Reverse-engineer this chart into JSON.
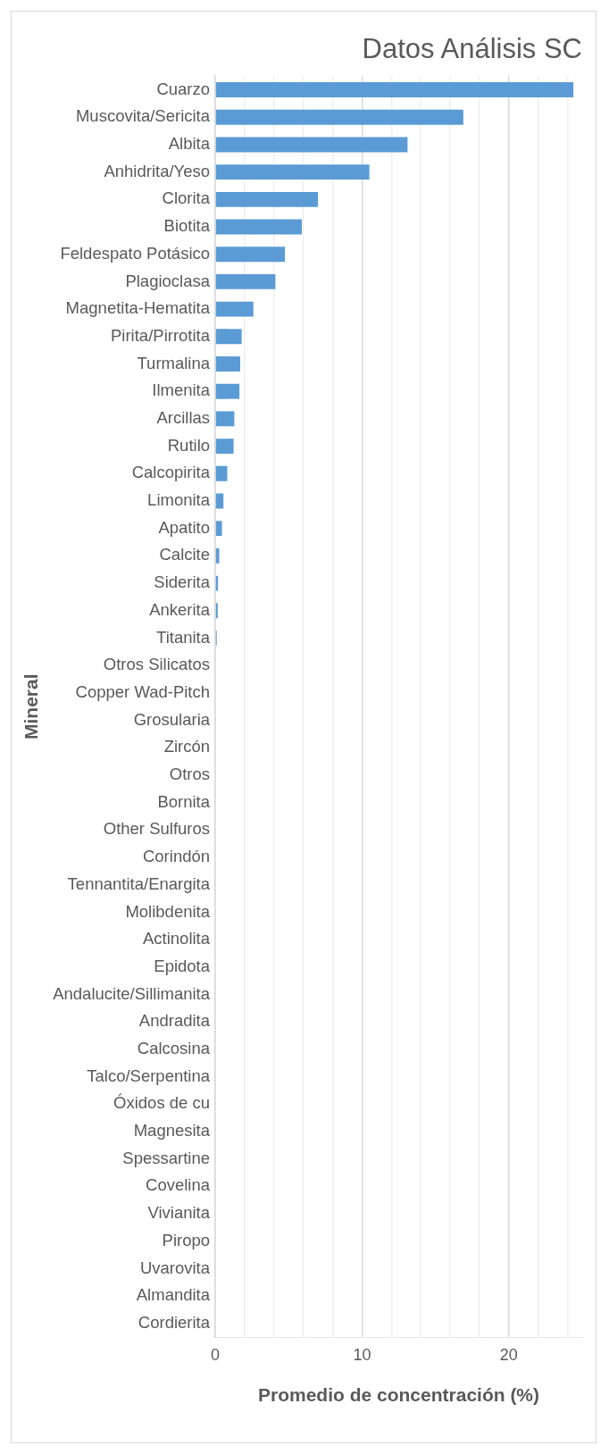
{
  "chart_data": {
    "type": "bar",
    "orientation": "horizontal",
    "title": "Datos Análisis SC",
    "xlabel": "Promedio de concentración (%)",
    "ylabel": "Mineral",
    "categories": [
      "Cuarzo",
      "Muscovita/Sericita",
      "Albita",
      "Anhidrita/Yeso",
      "Clorita",
      "Biotita",
      "Feldespato Potásico",
      "Plagioclasa",
      "Magnetita-Hematita",
      "Pirita/Pirrotita",
      "Turmalina",
      "Ilmenita",
      "Arcillas",
      "Rutilo",
      "Calcopirita",
      "Limonita",
      "Apatito",
      "Calcite",
      "Siderita",
      "Ankerita",
      "Titanita",
      "Otros Silicatos",
      "Copper Wad-Pitch",
      "Grosularia",
      "Zircón",
      "Otros",
      "Bornita",
      "Other Sulfuros",
      "Corindón",
      "Tennantita/Enargita",
      "Molibdenita",
      "Actinolita",
      "Epidota",
      "Andalucite/Sillimanita",
      "Andradita",
      "Calcosina",
      "Talco/Serpentina",
      "Óxidos de cu",
      "Magnesita",
      "Spessartine",
      "Covelina",
      "Vivianita",
      "Piropo",
      "Uvarovita",
      "Almandita",
      "Cordierita"
    ],
    "values": [
      24.4,
      16.9,
      13.1,
      10.5,
      7.0,
      5.9,
      4.75,
      4.1,
      2.6,
      1.8,
      1.7,
      1.65,
      1.3,
      1.25,
      0.82,
      0.56,
      0.46,
      0.27,
      0.19,
      0.17,
      0.1,
      null,
      null,
      0,
      0,
      0,
      0,
      0,
      0,
      0,
      0,
      0,
      0,
      0,
      0,
      0,
      0,
      0,
      0,
      0,
      0,
      0,
      0,
      0,
      0,
      0
    ],
    "color": "#5b9bd5",
    "xlim": [
      0,
      25
    ],
    "xticks": [
      0,
      {
        "value": 2,
        "label": null
      },
      {
        "value": 4,
        "label": null
      },
      {
        "value": 6,
        "label": null
      },
      {
        "value": 8,
        "label": null
      },
      10,
      {
        "value": 12,
        "label": null
      },
      {
        "value": 14,
        "label": null
      },
      {
        "value": 16,
        "label": null
      },
      {
        "value": 18,
        "label": null
      },
      20,
      {
        "value": 22,
        "label": null
      },
      {
        "value": 24,
        "label": null
      }
    ],
    "grid": "x"
  }
}
